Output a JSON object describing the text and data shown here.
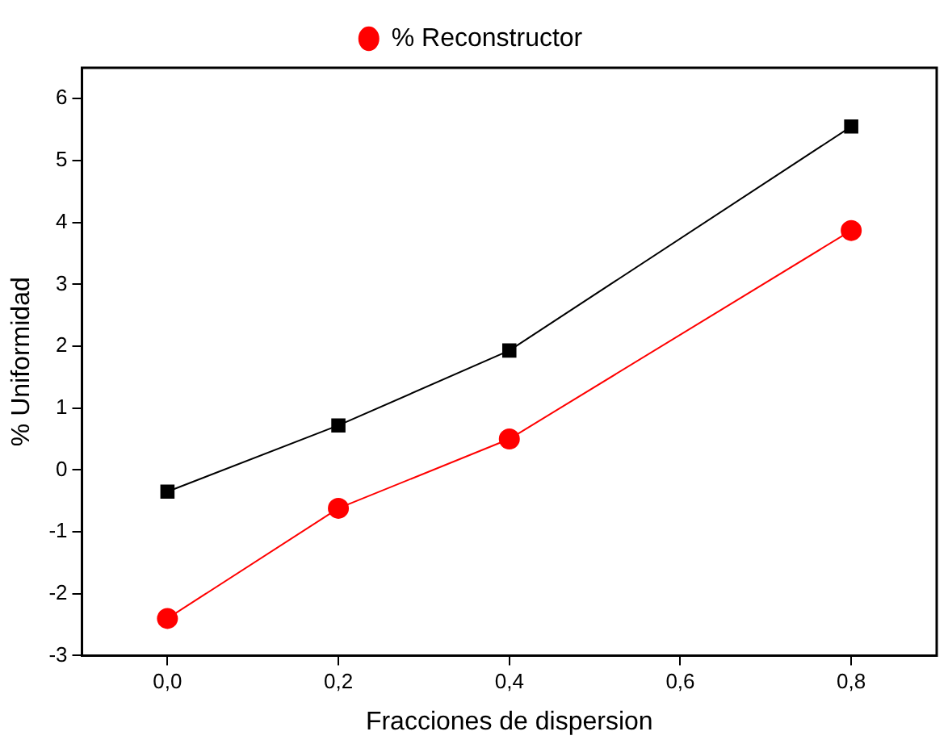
{
  "chart_data": {
    "type": "line",
    "xlabel": "Fracciones de dispersion",
    "ylabel": "% Uniformidad",
    "x": [
      0,
      0.2,
      0.4,
      0.8
    ],
    "series": [
      {
        "color": "#000000",
        "marker": "square",
        "values": [
          -0.35,
          0.72,
          1.93,
          5.55
        ]
      },
      {
        "name": "% Reconstructor",
        "color": "#ff0000",
        "marker": "circle",
        "values": [
          -2.4,
          -0.62,
          0.5,
          3.87
        ]
      }
    ],
    "xlim": [
      -0.1,
      0.9
    ],
    "xticks": [
      {
        "value": 0,
        "label": "0,0"
      },
      {
        "value": 0.2,
        "label": "0,2"
      },
      {
        "value": 0.4,
        "label": "0,4"
      },
      {
        "value": 0.6,
        "label": "0,6"
      },
      {
        "value": 0.8,
        "label": "0,8"
      }
    ],
    "ylim": [
      -3,
      6.5
    ],
    "yticks": [
      -3,
      -2,
      -1,
      0,
      1,
      2,
      3,
      4,
      5,
      6
    ],
    "grid": false,
    "legend": "top",
    "line_style": "solid"
  }
}
